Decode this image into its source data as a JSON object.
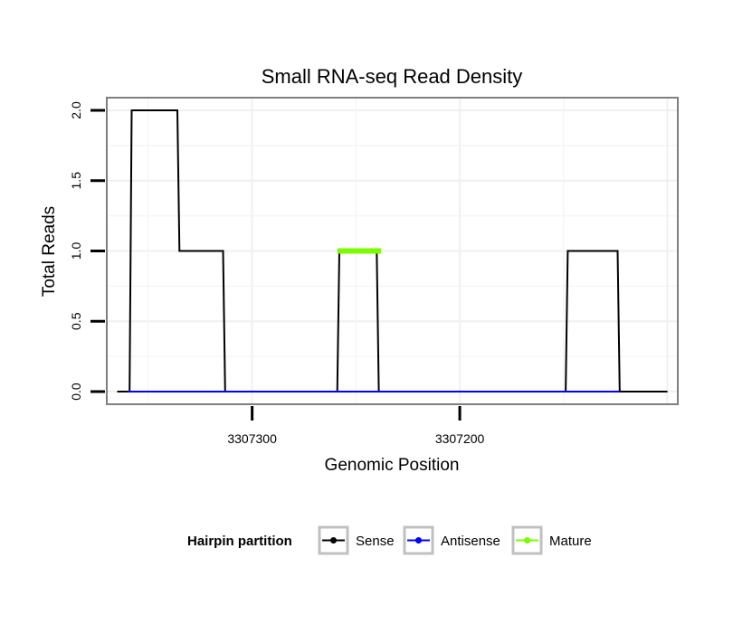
{
  "chart_data": {
    "type": "line",
    "title": "Small RNA-seq Read Density",
    "xlabel": "Genomic Position",
    "ylabel": "Total Reads",
    "x_reversed": true,
    "xlim": [
      3307370,
      3307095
    ],
    "ylim": [
      -0.09,
      2.09
    ],
    "xticks": [
      3307300,
      3307200
    ],
    "xtick_labels": [
      "3307300",
      "3307200"
    ],
    "yticks": [
      0.0,
      0.5,
      1.0,
      1.5,
      2.0
    ],
    "ytick_labels": [
      "0.0",
      "0.5",
      "1.0",
      "1.5",
      "2.0"
    ],
    "grid": true,
    "series": [
      {
        "name": "Sense",
        "color": "#000000",
        "points": [
          [
            3307365,
            0
          ],
          [
            3307359,
            0
          ],
          [
            3307358,
            2
          ],
          [
            3307336,
            2
          ],
          [
            3307335,
            1
          ],
          [
            3307314,
            1
          ],
          [
            3307313,
            0
          ],
          [
            3307259,
            0
          ],
          [
            3307258,
            1
          ],
          [
            3307240,
            1
          ],
          [
            3307239,
            0
          ],
          [
            3307149,
            0
          ],
          [
            3307148,
            1
          ],
          [
            3307124,
            1
          ],
          [
            3307123,
            0
          ],
          [
            3307100,
            0
          ]
        ]
      },
      {
        "name": "Antisense",
        "color": "#0000ff",
        "points": [
          [
            3307360,
            0
          ],
          [
            3307123,
            0
          ]
        ]
      },
      {
        "name": "Mature",
        "color": "#7cfc00",
        "points": [
          [
            3307259,
            1
          ],
          [
            3307238,
            1
          ]
        ]
      }
    ],
    "legend": {
      "title": "Hairpin partition",
      "position": "bottom",
      "entries": [
        {
          "label": "Sense",
          "color": "#000000"
        },
        {
          "label": "Antisense",
          "color": "#0000ff"
        },
        {
          "label": "Mature",
          "color": "#7cfc00"
        }
      ]
    }
  }
}
